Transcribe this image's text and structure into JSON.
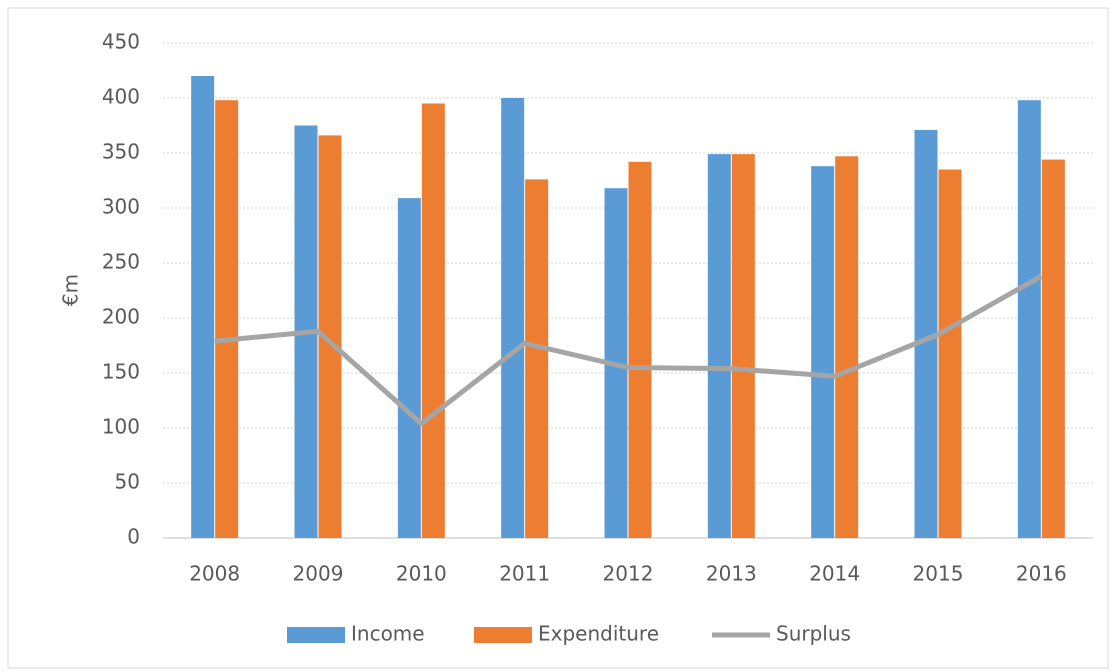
{
  "chart_data": {
    "type": "bar",
    "y_label": "€m",
    "categories": [
      "2008",
      "2009",
      "2010",
      "2011",
      "2012",
      "2013",
      "2014",
      "2015",
      "2016"
    ],
    "series": [
      {
        "name": "Income",
        "color": "#5b9bd5",
        "values": [
          420,
          375,
          309,
          400,
          318,
          349,
          338,
          371,
          398
        ]
      },
      {
        "name": "Expenditure",
        "color": "#ed7d31",
        "values": [
          398,
          366,
          395,
          326,
          342,
          349,
          347,
          335,
          344
        ]
      },
      {
        "name": "Surplus",
        "color": "#a5a5a5",
        "type": "line",
        "values": [
          179,
          188,
          104,
          177,
          155,
          154,
          147,
          185,
          238
        ]
      }
    ],
    "ylim": [
      0,
      450
    ],
    "yticks": [
      0,
      50,
      100,
      150,
      200,
      250,
      300,
      350,
      400,
      450
    ],
    "grid": true,
    "legend": "bottom"
  }
}
